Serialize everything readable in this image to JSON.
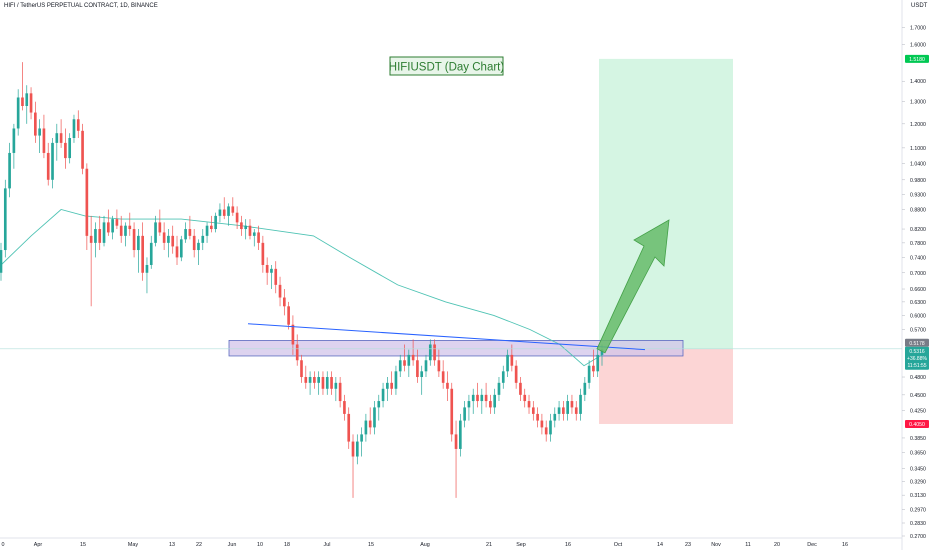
{
  "header": {
    "symbol_line": "HIFI / TetherUS PERPETUAL CONTRACT, 1D, BINANCE",
    "currency": "USDT"
  },
  "chart_data": {
    "type": "candlestick",
    "title": "HIFIUSDT (Day Chart)",
    "x_axis": {
      "tick_labels": [
        "0",
        "Apr",
        "15",
        "May",
        "13",
        "22",
        "Jun",
        "10",
        "18",
        "Jul",
        "15",
        "Aug",
        "21",
        "Sep",
        "16",
        "Oct",
        "14",
        "23",
        "Nov",
        "11",
        "20",
        "Dec",
        "16"
      ]
    },
    "y_axis": {
      "scale": "log",
      "range": [
        0.27,
        1.76
      ],
      "tick_labels": [
        "1.7000",
        "1.6000",
        "1.4000",
        "1.3000",
        "1.2000",
        "1.1000",
        "1.0400",
        "0.9800",
        "0.9300",
        "0.8800",
        "0.8200",
        "0.7800",
        "0.7400",
        "0.7000",
        "0.6600",
        "0.6300",
        "0.6000",
        "0.5700",
        "0.4800",
        "0.4500",
        "0.4250",
        "0.3850",
        "0.3650",
        "0.3450",
        "0.3290",
        "0.3130",
        "0.2970",
        "0.2830",
        "0.2700"
      ]
    },
    "price_badges": {
      "target": "1.5180",
      "stop": "0.4050",
      "entry": "0.5316",
      "change_pct": "+36.88%",
      "countdown": "11:51:55",
      "secondary": "0.5178"
    },
    "levels": {
      "target": 1.518,
      "stop": 0.405,
      "entry": 0.5316,
      "resistance_zone": [
        0.518,
        0.548
      ],
      "horizontal_line": 0.5316
    },
    "moving_average": [
      {
        "t": 0,
        "v": 0.72
      },
      {
        "t": 0.05,
        "v": 0.8
      },
      {
        "t": 0.1,
        "v": 0.88
      },
      {
        "t": 0.14,
        "v": 0.86
      },
      {
        "t": 0.2,
        "v": 0.85
      },
      {
        "t": 0.3,
        "v": 0.85
      },
      {
        "t": 0.4,
        "v": 0.83
      },
      {
        "t": 0.52,
        "v": 0.8
      },
      {
        "t": 0.58,
        "v": 0.74
      },
      {
        "t": 0.66,
        "v": 0.67
      },
      {
        "t": 0.74,
        "v": 0.63
      },
      {
        "t": 0.82,
        "v": 0.6
      },
      {
        "t": 0.88,
        "v": 0.57
      },
      {
        "t": 0.93,
        "v": 0.54
      },
      {
        "t": 0.97,
        "v": 0.5
      },
      {
        "t": 1.0,
        "v": 0.52
      }
    ],
    "trendline": {
      "start": 0.582,
      "end": 0.53
    },
    "colors": {
      "up": "#26a69a",
      "down": "#ef5350",
      "ma": "#4fc3b4",
      "trendline": "#2962ff",
      "zone_fill": "#d1c4e9",
      "zone_stroke": "#5c6bc0",
      "target_zone": "#d5f5e3",
      "stop_zone": "#fcd5d5",
      "arrow": "#66bb6a",
      "title_text": "#2e7d32",
      "title_border": "#2e7d32",
      "badge_green": "#00c853",
      "badge_red": "#ff1744",
      "badge_gray": "#787b86"
    },
    "candles": [
      {
        "o": 0.7,
        "h": 0.78,
        "l": 0.68,
        "c": 0.76
      },
      {
        "o": 0.76,
        "h": 0.98,
        "l": 0.74,
        "c": 0.95
      },
      {
        "o": 0.95,
        "h": 1.12,
        "l": 0.92,
        "c": 1.08
      },
      {
        "o": 1.08,
        "h": 1.2,
        "l": 1.02,
        "c": 1.18
      },
      {
        "o": 1.18,
        "h": 1.36,
        "l": 1.15,
        "c": 1.32
      },
      {
        "o": 1.32,
        "h": 1.5,
        "l": 1.26,
        "c": 1.28
      },
      {
        "o": 1.28,
        "h": 1.38,
        "l": 1.2,
        "c": 1.34
      },
      {
        "o": 1.34,
        "h": 1.37,
        "l": 1.22,
        "c": 1.25
      },
      {
        "o": 1.25,
        "h": 1.3,
        "l": 1.12,
        "c": 1.15
      },
      {
        "o": 1.15,
        "h": 1.22,
        "l": 1.08,
        "c": 1.18
      },
      {
        "o": 1.18,
        "h": 1.24,
        "l": 1.06,
        "c": 1.08
      },
      {
        "o": 1.08,
        "h": 1.12,
        "l": 0.96,
        "c": 0.98
      },
      {
        "o": 0.98,
        "h": 1.14,
        "l": 0.95,
        "c": 1.12
      },
      {
        "o": 1.12,
        "h": 1.2,
        "l": 1.05,
        "c": 1.16
      },
      {
        "o": 1.16,
        "h": 1.22,
        "l": 1.1,
        "c": 1.12
      },
      {
        "o": 1.12,
        "h": 1.18,
        "l": 1.02,
        "c": 1.06
      },
      {
        "o": 1.06,
        "h": 1.16,
        "l": 1.04,
        "c": 1.14
      },
      {
        "o": 1.14,
        "h": 1.24,
        "l": 1.12,
        "c": 1.22
      },
      {
        "o": 1.22,
        "h": 1.26,
        "l": 1.14,
        "c": 1.17
      },
      {
        "o": 1.17,
        "h": 1.2,
        "l": 1.0,
        "c": 1.02
      },
      {
        "o": 1.02,
        "h": 1.04,
        "l": 0.76,
        "c": 0.8
      },
      {
        "o": 0.8,
        "h": 0.86,
        "l": 0.62,
        "c": 0.78
      },
      {
        "o": 0.78,
        "h": 0.84,
        "l": 0.74,
        "c": 0.82
      },
      {
        "o": 0.82,
        "h": 0.86,
        "l": 0.76,
        "c": 0.78
      },
      {
        "o": 0.78,
        "h": 0.86,
        "l": 0.77,
        "c": 0.84
      },
      {
        "o": 0.84,
        "h": 0.88,
        "l": 0.8,
        "c": 0.81
      },
      {
        "o": 0.81,
        "h": 0.86,
        "l": 0.79,
        "c": 0.85
      },
      {
        "o": 0.85,
        "h": 0.88,
        "l": 0.82,
        "c": 0.83
      },
      {
        "o": 0.83,
        "h": 0.86,
        "l": 0.78,
        "c": 0.8
      },
      {
        "o": 0.8,
        "h": 0.84,
        "l": 0.77,
        "c": 0.83
      },
      {
        "o": 0.83,
        "h": 0.87,
        "l": 0.8,
        "c": 0.82
      },
      {
        "o": 0.82,
        "h": 0.84,
        "l": 0.74,
        "c": 0.76
      },
      {
        "o": 0.76,
        "h": 0.82,
        "l": 0.7,
        "c": 0.8
      },
      {
        "o": 0.8,
        "h": 0.84,
        "l": 0.68,
        "c": 0.7
      },
      {
        "o": 0.7,
        "h": 0.74,
        "l": 0.65,
        "c": 0.72
      },
      {
        "o": 0.72,
        "h": 0.8,
        "l": 0.71,
        "c": 0.78
      },
      {
        "o": 0.78,
        "h": 0.86,
        "l": 0.77,
        "c": 0.84
      },
      {
        "o": 0.84,
        "h": 0.88,
        "l": 0.8,
        "c": 0.81
      },
      {
        "o": 0.81,
        "h": 0.84,
        "l": 0.76,
        "c": 0.78
      },
      {
        "o": 0.78,
        "h": 0.82,
        "l": 0.74,
        "c": 0.8
      },
      {
        "o": 0.8,
        "h": 0.83,
        "l": 0.75,
        "c": 0.77
      },
      {
        "o": 0.77,
        "h": 0.8,
        "l": 0.72,
        "c": 0.74
      },
      {
        "o": 0.74,
        "h": 0.8,
        "l": 0.73,
        "c": 0.79
      },
      {
        "o": 0.79,
        "h": 0.84,
        "l": 0.78,
        "c": 0.82
      },
      {
        "o": 0.82,
        "h": 0.86,
        "l": 0.79,
        "c": 0.8
      },
      {
        "o": 0.8,
        "h": 0.82,
        "l": 0.74,
        "c": 0.76
      },
      {
        "o": 0.76,
        "h": 0.79,
        "l": 0.72,
        "c": 0.78
      },
      {
        "o": 0.78,
        "h": 0.82,
        "l": 0.76,
        "c": 0.8
      },
      {
        "o": 0.8,
        "h": 0.84,
        "l": 0.78,
        "c": 0.83
      },
      {
        "o": 0.83,
        "h": 0.86,
        "l": 0.81,
        "c": 0.82
      },
      {
        "o": 0.82,
        "h": 0.87,
        "l": 0.81,
        "c": 0.86
      },
      {
        "o": 0.86,
        "h": 0.9,
        "l": 0.84,
        "c": 0.88
      },
      {
        "o": 0.88,
        "h": 0.92,
        "l": 0.85,
        "c": 0.86
      },
      {
        "o": 0.86,
        "h": 0.9,
        "l": 0.83,
        "c": 0.89
      },
      {
        "o": 0.89,
        "h": 0.92,
        "l": 0.86,
        "c": 0.87
      },
      {
        "o": 0.87,
        "h": 0.89,
        "l": 0.82,
        "c": 0.84
      },
      {
        "o": 0.84,
        "h": 0.86,
        "l": 0.8,
        "c": 0.82
      },
      {
        "o": 0.82,
        "h": 0.85,
        "l": 0.79,
        "c": 0.83
      },
      {
        "o": 0.83,
        "h": 0.85,
        "l": 0.79,
        "c": 0.8
      },
      {
        "o": 0.8,
        "h": 0.82,
        "l": 0.77,
        "c": 0.81
      },
      {
        "o": 0.81,
        "h": 0.83,
        "l": 0.76,
        "c": 0.78
      },
      {
        "o": 0.78,
        "h": 0.8,
        "l": 0.7,
        "c": 0.72
      },
      {
        "o": 0.72,
        "h": 0.74,
        "l": 0.67,
        "c": 0.7
      },
      {
        "o": 0.7,
        "h": 0.72,
        "l": 0.66,
        "c": 0.71
      },
      {
        "o": 0.71,
        "h": 0.73,
        "l": 0.65,
        "c": 0.67
      },
      {
        "o": 0.67,
        "h": 0.69,
        "l": 0.62,
        "c": 0.64
      },
      {
        "o": 0.64,
        "h": 0.66,
        "l": 0.6,
        "c": 0.62
      },
      {
        "o": 0.62,
        "h": 0.63,
        "l": 0.57,
        "c": 0.58
      },
      {
        "o": 0.58,
        "h": 0.6,
        "l": 0.52,
        "c": 0.54
      },
      {
        "o": 0.54,
        "h": 0.56,
        "l": 0.5,
        "c": 0.51
      },
      {
        "o": 0.51,
        "h": 0.52,
        "l": 0.47,
        "c": 0.48
      },
      {
        "o": 0.48,
        "h": 0.5,
        "l": 0.46,
        "c": 0.47
      },
      {
        "o": 0.47,
        "h": 0.49,
        "l": 0.45,
        "c": 0.48
      },
      {
        "o": 0.48,
        "h": 0.49,
        "l": 0.46,
        "c": 0.47
      },
      {
        "o": 0.47,
        "h": 0.49,
        "l": 0.45,
        "c": 0.48
      },
      {
        "o": 0.48,
        "h": 0.49,
        "l": 0.45,
        "c": 0.46
      },
      {
        "o": 0.46,
        "h": 0.49,
        "l": 0.45,
        "c": 0.48
      },
      {
        "o": 0.48,
        "h": 0.49,
        "l": 0.45,
        "c": 0.46
      },
      {
        "o": 0.46,
        "h": 0.48,
        "l": 0.44,
        "c": 0.47
      },
      {
        "o": 0.47,
        "h": 0.48,
        "l": 0.43,
        "c": 0.44
      },
      {
        "o": 0.44,
        "h": 0.45,
        "l": 0.41,
        "c": 0.42
      },
      {
        "o": 0.42,
        "h": 0.43,
        "l": 0.37,
        "c": 0.38
      },
      {
        "o": 0.38,
        "h": 0.39,
        "l": 0.31,
        "c": 0.36
      },
      {
        "o": 0.36,
        "h": 0.39,
        "l": 0.35,
        "c": 0.38
      },
      {
        "o": 0.38,
        "h": 0.4,
        "l": 0.36,
        "c": 0.39
      },
      {
        "o": 0.39,
        "h": 0.42,
        "l": 0.38,
        "c": 0.41
      },
      {
        "o": 0.41,
        "h": 0.43,
        "l": 0.39,
        "c": 0.4
      },
      {
        "o": 0.4,
        "h": 0.44,
        "l": 0.39,
        "c": 0.43
      },
      {
        "o": 0.43,
        "h": 0.45,
        "l": 0.41,
        "c": 0.44
      },
      {
        "o": 0.44,
        "h": 0.47,
        "l": 0.43,
        "c": 0.46
      },
      {
        "o": 0.46,
        "h": 0.48,
        "l": 0.44,
        "c": 0.47
      },
      {
        "o": 0.47,
        "h": 0.49,
        "l": 0.45,
        "c": 0.46
      },
      {
        "o": 0.46,
        "h": 0.5,
        "l": 0.45,
        "c": 0.49
      },
      {
        "o": 0.49,
        "h": 0.52,
        "l": 0.48,
        "c": 0.51
      },
      {
        "o": 0.51,
        "h": 0.54,
        "l": 0.49,
        "c": 0.5
      },
      {
        "o": 0.5,
        "h": 0.53,
        "l": 0.48,
        "c": 0.52
      },
      {
        "o": 0.52,
        "h": 0.55,
        "l": 0.5,
        "c": 0.51
      },
      {
        "o": 0.51,
        "h": 0.53,
        "l": 0.47,
        "c": 0.48
      },
      {
        "o": 0.48,
        "h": 0.5,
        "l": 0.45,
        "c": 0.49
      },
      {
        "o": 0.49,
        "h": 0.52,
        "l": 0.48,
        "c": 0.51
      },
      {
        "o": 0.51,
        "h": 0.55,
        "l": 0.5,
        "c": 0.54
      },
      {
        "o": 0.54,
        "h": 0.55,
        "l": 0.5,
        "c": 0.51
      },
      {
        "o": 0.51,
        "h": 0.53,
        "l": 0.48,
        "c": 0.49
      },
      {
        "o": 0.49,
        "h": 0.51,
        "l": 0.46,
        "c": 0.47
      },
      {
        "o": 0.47,
        "h": 0.49,
        "l": 0.44,
        "c": 0.46
      },
      {
        "o": 0.46,
        "h": 0.47,
        "l": 0.38,
        "c": 0.39
      },
      {
        "o": 0.39,
        "h": 0.41,
        "l": 0.31,
        "c": 0.37
      },
      {
        "o": 0.37,
        "h": 0.42,
        "l": 0.36,
        "c": 0.41
      },
      {
        "o": 0.41,
        "h": 0.44,
        "l": 0.4,
        "c": 0.43
      },
      {
        "o": 0.43,
        "h": 0.45,
        "l": 0.41,
        "c": 0.44
      },
      {
        "o": 0.44,
        "h": 0.46,
        "l": 0.42,
        "c": 0.45
      },
      {
        "o": 0.45,
        "h": 0.47,
        "l": 0.43,
        "c": 0.44
      },
      {
        "o": 0.44,
        "h": 0.46,
        "l": 0.42,
        "c": 0.45
      },
      {
        "o": 0.45,
        "h": 0.47,
        "l": 0.43,
        "c": 0.44
      },
      {
        "o": 0.44,
        "h": 0.45,
        "l": 0.42,
        "c": 0.43
      },
      {
        "o": 0.43,
        "h": 0.46,
        "l": 0.42,
        "c": 0.45
      },
      {
        "o": 0.45,
        "h": 0.48,
        "l": 0.44,
        "c": 0.47
      },
      {
        "o": 0.47,
        "h": 0.5,
        "l": 0.46,
        "c": 0.49
      },
      {
        "o": 0.49,
        "h": 0.53,
        "l": 0.48,
        "c": 0.52
      },
      {
        "o": 0.52,
        "h": 0.54,
        "l": 0.49,
        "c": 0.5
      },
      {
        "o": 0.5,
        "h": 0.51,
        "l": 0.46,
        "c": 0.47
      },
      {
        "o": 0.47,
        "h": 0.48,
        "l": 0.44,
        "c": 0.45
      },
      {
        "o": 0.45,
        "h": 0.46,
        "l": 0.43,
        "c": 0.44
      },
      {
        "o": 0.44,
        "h": 0.45,
        "l": 0.42,
        "c": 0.43
      },
      {
        "o": 0.43,
        "h": 0.44,
        "l": 0.41,
        "c": 0.42
      },
      {
        "o": 0.42,
        "h": 0.43,
        "l": 0.4,
        "c": 0.41
      },
      {
        "o": 0.41,
        "h": 0.42,
        "l": 0.39,
        "c": 0.4
      },
      {
        "o": 0.4,
        "h": 0.41,
        "l": 0.38,
        "c": 0.39
      },
      {
        "o": 0.39,
        "h": 0.42,
        "l": 0.38,
        "c": 0.41
      },
      {
        "o": 0.41,
        "h": 0.43,
        "l": 0.4,
        "c": 0.42
      },
      {
        "o": 0.42,
        "h": 0.44,
        "l": 0.41,
        "c": 0.43
      },
      {
        "o": 0.43,
        "h": 0.44,
        "l": 0.41,
        "c": 0.42
      },
      {
        "o": 0.42,
        "h": 0.45,
        "l": 0.41,
        "c": 0.44
      },
      {
        "o": 0.44,
        "h": 0.45,
        "l": 0.42,
        "c": 0.43
      },
      {
        "o": 0.43,
        "h": 0.44,
        "l": 0.41,
        "c": 0.42
      },
      {
        "o": 0.42,
        "h": 0.46,
        "l": 0.41,
        "c": 0.45
      },
      {
        "o": 0.45,
        "h": 0.48,
        "l": 0.44,
        "c": 0.47
      },
      {
        "o": 0.47,
        "h": 0.51,
        "l": 0.46,
        "c": 0.5
      },
      {
        "o": 0.5,
        "h": 0.53,
        "l": 0.48,
        "c": 0.49
      },
      {
        "o": 0.49,
        "h": 0.53,
        "l": 0.48,
        "c": 0.52
      },
      {
        "o": 0.52,
        "h": 0.54,
        "l": 0.5,
        "c": 0.53
      }
    ]
  }
}
